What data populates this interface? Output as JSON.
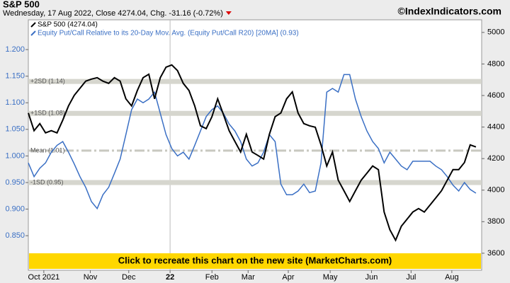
{
  "chart_data": {
    "type": "line",
    "title": "S&P 500",
    "subtitle": "Wednesday, 17 Aug 2022, Close 4274.04, Chg. -31.16 (-0.72%)",
    "source": "©IndexIndicators.com",
    "banner": "Click to recreate this chart on the new site (MarketCharts.com)",
    "xlim": [
      0,
      79
    ],
    "xticks": [
      {
        "value": 2.7,
        "label": "Oct 2021"
      },
      {
        "value": 10.8,
        "label": "Nov"
      },
      {
        "value": 17.5,
        "label": "Dec"
      },
      {
        "value": 24.7,
        "label": "22"
      },
      {
        "value": 32,
        "label": "Feb"
      },
      {
        "value": 38.3,
        "label": "Mar"
      },
      {
        "value": 45.3,
        "label": "Apr"
      },
      {
        "value": 52.6,
        "label": "May"
      },
      {
        "value": 59.8,
        "label": "Jun"
      },
      {
        "value": 66.7,
        "label": "Jul"
      },
      {
        "value": 73.8,
        "label": "Aug"
      }
    ],
    "year_line": 24.7,
    "ylim": [
      3492,
      5080
    ],
    "yticks": [
      3600,
      3800,
      4000,
      4200,
      4400,
      4600,
      4800,
      5000
    ],
    "y2lim": [
      0.785,
      1.256
    ],
    "y2ticks": [
      {
        "value": 0.85,
        "label": "0.850"
      },
      {
        "value": 0.9,
        "label": "0.900"
      },
      {
        "value": 0.95,
        "label": "0.950"
      },
      {
        "value": 1.0,
        "label": "1.000"
      },
      {
        "value": 1.05,
        "label": "1.050"
      },
      {
        "value": 1.1,
        "label": "1.100"
      },
      {
        "value": 1.15,
        "label": "1.150"
      },
      {
        "value": 1.2,
        "label": "1.200"
      }
    ],
    "reference_lines": [
      {
        "label": "+2SD (1.14)",
        "value": 1.14
      },
      {
        "label": "+1SD (1.08)",
        "value": 1.08
      },
      {
        "label": "Mean (1.01)",
        "value": 1.01
      },
      {
        "label": "-1SD (0.95)",
        "value": 0.95
      }
    ],
    "series": [
      {
        "name": "S&P 500 (4274.04)",
        "color": "#000000",
        "values": [
          4489,
          4377,
          4422,
          4363,
          4377,
          4363,
          4444,
          4534,
          4601,
          4646,
          4691,
          4704,
          4713,
          4691,
          4677,
          4713,
          4691,
          4579,
          4534,
          4632,
          4713,
          4735,
          4579,
          4713,
          4780,
          4794,
          4758,
          4677,
          4632,
          4534,
          4408,
          4390,
          4466,
          4579,
          4480,
          4377,
          4309,
          4242,
          4354,
          4242,
          4220,
          4197,
          4354,
          4466,
          4489,
          4579,
          4623,
          4489,
          4422,
          4408,
          4399,
          4287,
          4153,
          4242,
          4063,
          3996,
          3928,
          3996,
          4063,
          4108,
          4153,
          4130,
          3861,
          3749,
          3682,
          3771,
          3816,
          3861,
          3883,
          3861,
          3906,
          3951,
          3996,
          4063,
          4130,
          4130,
          4175,
          4287,
          4274.04
        ]
      },
      {
        "name": "Equity Put/Call Relative to its 20-Day Mov. Avg. (Equity Put/Call R20) [20MA] (0.93)",
        "color": "#3a6fc4",
        "axis": "y2",
        "values": [
          0.987,
          0.961,
          0.977,
          0.987,
          1.007,
          1.02,
          1.027,
          1.007,
          0.985,
          0.961,
          0.941,
          0.914,
          0.901,
          0.927,
          0.941,
          0.967,
          0.994,
          1.04,
          1.087,
          1.107,
          1.1,
          1.107,
          1.12,
          1.08,
          1.04,
          1.014,
          1.0,
          1.007,
          0.994,
          1.02,
          1.047,
          1.074,
          1.087,
          1.094,
          1.08,
          1.06,
          1.047,
          1.027,
          0.994,
          0.981,
          0.987,
          1.007,
          1.04,
          1.027,
          0.947,
          0.927,
          0.927,
          0.934,
          0.947,
          0.931,
          0.934,
          0.987,
          1.12,
          1.127,
          1.12,
          1.153,
          1.153,
          1.107,
          1.074,
          1.047,
          1.027,
          1.014,
          0.987,
          1.007,
          0.994,
          0.981,
          0.974,
          0.99,
          0.99,
          0.99,
          0.99,
          0.981,
          0.974,
          0.961,
          0.945,
          0.934,
          0.95,
          0.937,
          0.93
        ]
      }
    ]
  }
}
